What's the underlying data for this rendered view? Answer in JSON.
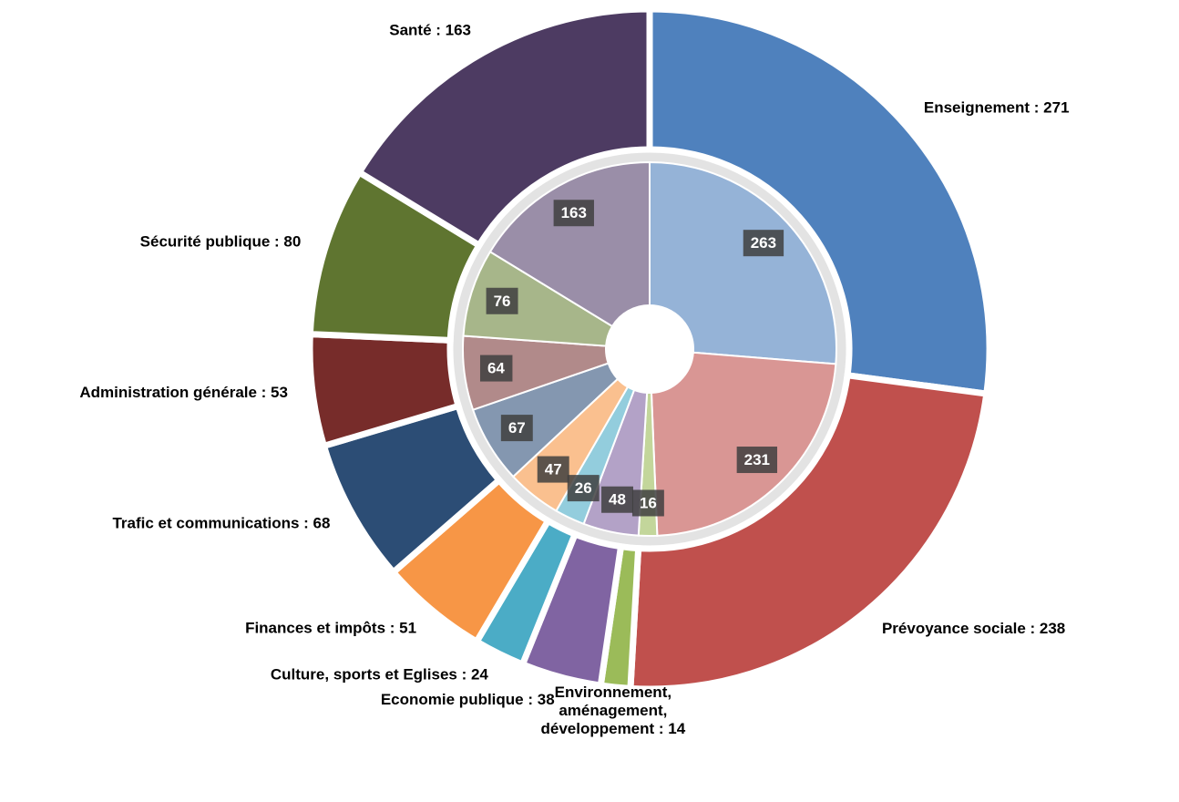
{
  "chart_data": {
    "type": "nested-donut",
    "categories": [
      "Enseignement",
      "Prévoyance sociale",
      "Environnement, aménagement, développement",
      "Economie publique",
      "Culture, sports et Eglises",
      "Finances et impôts",
      "Trafic et communications",
      "Administration générale",
      "Sécurité publique",
      "Santé"
    ],
    "series": [
      {
        "ring": "outer",
        "colors": [
          "#4f81bd",
          "#c0504d",
          "#9bbb59",
          "#8064a2",
          "#4bacc6",
          "#f79646",
          "#2c4d75",
          "#772c2a",
          "#5f7530",
          "#4d3b62"
        ],
        "values": [
          271,
          238,
          14,
          38,
          24,
          51,
          68,
          53,
          80,
          163
        ],
        "value_labels": [
          "Enseignement : 271",
          "Prévoyance sociale : 238",
          "Environnement,\naménagement,\ndéveloppement : 14",
          "Economie publique : 38",
          "Culture, sports et Eglises : 24",
          "Finances et impôts : 51",
          "Trafic et communications : 68",
          "Administration générale : 53",
          "Sécurité publique : 80",
          "Santé : 163"
        ]
      },
      {
        "ring": "inner",
        "colors": [
          "#95b3d7",
          "#d99694",
          "#c3d69b",
          "#b3a2c7",
          "#93cddd",
          "#fac08f",
          "#8497b0",
          "#b18a8a",
          "#a7b68a",
          "#9a8ea8"
        ],
        "values": [
          263,
          231,
          16,
          48,
          26,
          47,
          67,
          64,
          76,
          163
        ]
      }
    ]
  }
}
